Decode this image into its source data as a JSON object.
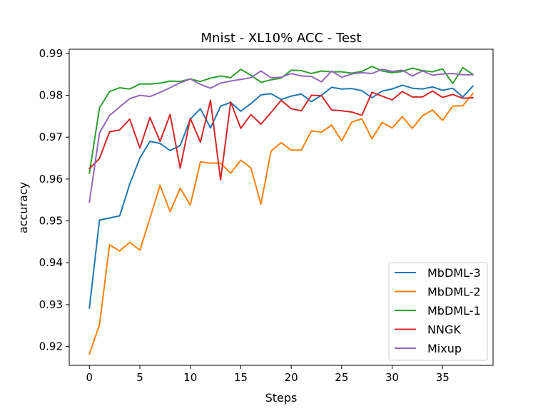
{
  "chart_data": {
    "type": "line",
    "title": "Mnist - XL10% ACC - Test",
    "xlabel": "Steps",
    "ylabel": "accuracy",
    "xlim": [
      -2.0,
      40.0
    ],
    "ylim": [
      0.9155,
      0.991
    ],
    "xticks": [
      0,
      5,
      10,
      15,
      20,
      25,
      30,
      35
    ],
    "yticks": [
      0.92,
      0.93,
      0.94,
      0.95,
      0.96,
      0.97,
      0.98,
      0.99
    ],
    "xtick_labels": [
      "0",
      "5",
      "10",
      "15",
      "20",
      "25",
      "30",
      "35"
    ],
    "ytick_labels": [
      "0.92",
      "0.93",
      "0.94",
      "0.95",
      "0.96",
      "0.97",
      "0.98",
      "0.99"
    ],
    "grid": false,
    "legend_position": "lower-right",
    "x": [
      0,
      1,
      2,
      3,
      4,
      5,
      6,
      7,
      8,
      9,
      10,
      11,
      12,
      13,
      14,
      15,
      16,
      17,
      18,
      19,
      20,
      21,
      22,
      23,
      24,
      25,
      26,
      27,
      28,
      29,
      30,
      31,
      32,
      33,
      34,
      35,
      36,
      37,
      38
    ],
    "series": [
      {
        "name": "MbDML-3",
        "color": "#1f77b4",
        "values": [
          0.9292,
          0.9502,
          0.9507,
          0.9512,
          0.9588,
          0.965,
          0.969,
          0.9685,
          0.9668,
          0.968,
          0.9743,
          0.9768,
          0.9722,
          0.9774,
          0.9783,
          0.9762,
          0.978,
          0.9801,
          0.9804,
          0.979,
          0.9798,
          0.9803,
          0.9785,
          0.98,
          0.9819,
          0.9815,
          0.9816,
          0.9811,
          0.9794,
          0.981,
          0.9815,
          0.9824,
          0.9817,
          0.9815,
          0.982,
          0.9812,
          0.9817,
          0.9796,
          0.9822
        ]
      },
      {
        "name": "MbDML-2",
        "color": "#ff7f0e",
        "values": [
          0.9182,
          0.9252,
          0.9443,
          0.9428,
          0.9449,
          0.943,
          0.9506,
          0.9585,
          0.9522,
          0.9578,
          0.9538,
          0.9641,
          0.9638,
          0.9638,
          0.9614,
          0.9645,
          0.9627,
          0.954,
          0.9667,
          0.9687,
          0.9669,
          0.9669,
          0.9715,
          0.9712,
          0.9729,
          0.9691,
          0.9736,
          0.9744,
          0.9696,
          0.9735,
          0.9722,
          0.9749,
          0.9721,
          0.9751,
          0.9765,
          0.974,
          0.9774,
          0.9775,
          0.9804
        ]
      },
      {
        "name": "MbDML-1",
        "color": "#2ca02c",
        "values": [
          0.9614,
          0.977,
          0.9809,
          0.9818,
          0.9815,
          0.9827,
          0.9827,
          0.9829,
          0.9834,
          0.9833,
          0.9839,
          0.9833,
          0.9841,
          0.9846,
          0.9842,
          0.9862,
          0.9848,
          0.9831,
          0.9837,
          0.9841,
          0.986,
          0.9859,
          0.9852,
          0.9858,
          0.9856,
          0.9856,
          0.9853,
          0.9857,
          0.9869,
          0.9858,
          0.9854,
          0.9857,
          0.9865,
          0.9859,
          0.9856,
          0.9863,
          0.9828,
          0.9866,
          0.985
        ]
      },
      {
        "name": "NNGK",
        "color": "#d62728",
        "values": [
          0.9625,
          0.9649,
          0.9713,
          0.9717,
          0.9743,
          0.9674,
          0.9747,
          0.969,
          0.9754,
          0.9626,
          0.9745,
          0.9688,
          0.9788,
          0.9598,
          0.9784,
          0.9721,
          0.9754,
          0.9731,
          0.9759,
          0.9788,
          0.9768,
          0.9763,
          0.98,
          0.9799,
          0.9765,
          0.9763,
          0.976,
          0.9752,
          0.9807,
          0.9798,
          0.9789,
          0.9809,
          0.9796,
          0.9796,
          0.981,
          0.9795,
          0.9802,
          0.9793,
          0.9794
        ]
      },
      {
        "name": "Mixup",
        "color": "#9467bd",
        "values": [
          0.9545,
          0.971,
          0.9752,
          0.9772,
          0.9792,
          0.98,
          0.9797,
          0.9807,
          0.9818,
          0.983,
          0.9839,
          0.9826,
          0.9817,
          0.9829,
          0.9834,
          0.9838,
          0.9842,
          0.9858,
          0.9842,
          0.9843,
          0.9852,
          0.9846,
          0.9845,
          0.9832,
          0.9858,
          0.9843,
          0.9851,
          0.9854,
          0.9852,
          0.9862,
          0.9857,
          0.986,
          0.9846,
          0.9858,
          0.9848,
          0.9851,
          0.9852,
          0.9849,
          0.9849
        ]
      }
    ]
  }
}
